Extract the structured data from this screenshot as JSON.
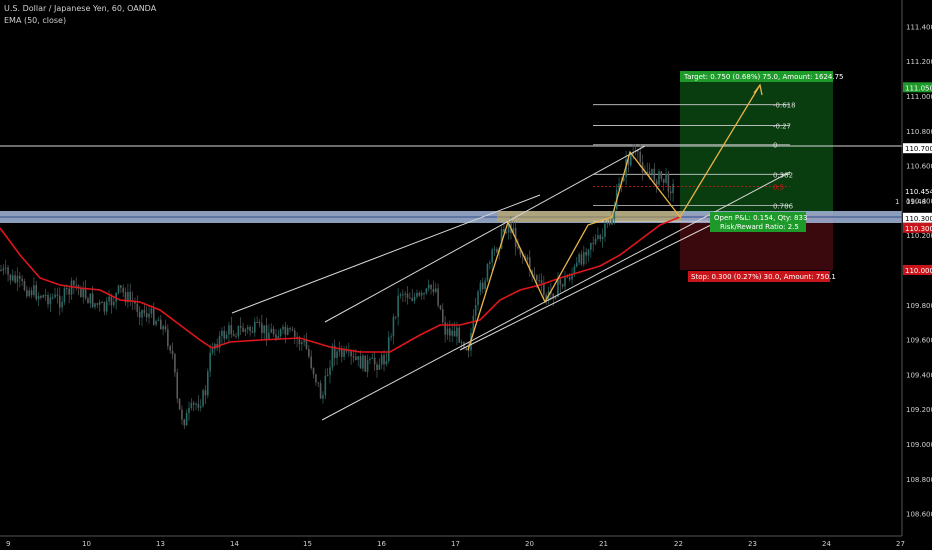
{
  "header": {
    "title": "U.S. Dollar / Japanese Yen, 60, OANDA",
    "indicator": "EMA (50, close)"
  },
  "colors": {
    "background": "#000000",
    "bull": "#2a6b66",
    "bear": "#5a5a5a",
    "ema": "#e0161b",
    "pattern": "#e8b44a",
    "channel": "#d8d8d8",
    "target_zone": "#0c4a12",
    "stop_zone": "#4a0c10",
    "target_tag": "#1e9a2a",
    "stop_tag": "#c8151b",
    "support_band": "#7e9ac4",
    "highlight": "#c9a84a"
  },
  "price_axis": {
    "ticks": [
      "111.400",
      "111.200",
      "111.000",
      "110.800",
      "110.600",
      "110.400",
      "110.200",
      "110.000",
      "109.800",
      "109.600",
      "109.400",
      "109.200",
      "109.000",
      "108.800",
      "108.600"
    ],
    "tags": {
      "target": "111.050",
      "resistance": "110.700",
      "current": "110.454",
      "countdown_prefix": "1",
      "countdown": "09:48",
      "support": "110.300",
      "entry": "110.300",
      "stop": "110.000"
    }
  },
  "time_axis": {
    "labels": [
      "9",
      "10",
      "13",
      "14",
      "15",
      "16",
      "17",
      "20",
      "21",
      "22",
      "23",
      "24",
      "27"
    ]
  },
  "fibonacci": {
    "levels": [
      {
        "label": "-0.618",
        "price": 110.95
      },
      {
        "label": "-0.27",
        "price": 110.83
      },
      {
        "label": "0",
        "price": 110.72
      },
      {
        "label": "0.382",
        "price": 110.55
      },
      {
        "label": "0.5",
        "price": 110.48
      },
      {
        "label": "0.786",
        "price": 110.37
      },
      {
        "label": "1",
        "price": 110.28
      }
    ]
  },
  "position": {
    "target_label": "Target: 0.750 (0.68%) 75.0, Amount: 1624.75",
    "stop_label": "Stop: 0.300 (0.27%) 30.0, Amount: 750.1",
    "open_pnl": "Open P&L: 0.154, Qty: 833",
    "risk_reward": "Risk/Reward Ratio: 2.5"
  }
}
